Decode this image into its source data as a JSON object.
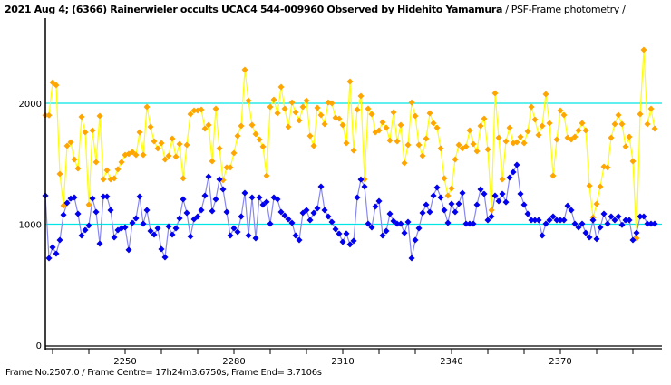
{
  "header": {
    "title_bold": "2021 Aug 4; (6366) Rainerwieler occults UCAC4 544-009960 Observed by Hidehito Yamamura",
    "title_suffix": " / PSF-Frame photometry /"
  },
  "footer": {
    "text": "Frame No.2507.0 / Frame Centre= 17h24m3.6750s,  Frame End= 3.7106s"
  },
  "colors": {
    "target_marker": "#0000ee",
    "target_line": "#8888ee",
    "comparison_marker": "#ffa500",
    "comparison_line": "#ffff00",
    "reference_line": "#00e5e5",
    "axis": "#000000"
  },
  "chart_data": {
    "type": "line",
    "title": "2021 Aug 4; (6366) Rainerwieler occults UCAC4 544-009960 Observed by Hidehito Yamamura / PSF-Frame photometry /",
    "xlabel": "",
    "ylabel": "",
    "xlim": [
      2225,
      2395
    ],
    "ylim": [
      0,
      2650
    ],
    "x_ticks": [
      2250,
      2280,
      2310,
      2340,
      2370
    ],
    "x_minor_step": 10,
    "y_ticks": [
      0,
      1000,
      2000
    ],
    "reference_lines": [
      1000,
      2000
    ],
    "grid": false,
    "legend": "none",
    "x_start": 2228,
    "series": [
      {
        "name": "comparison",
        "values": [
          1901,
          1901,
          2172,
          2150,
          1416,
          1154,
          1648,
          1678,
          1536,
          1461,
          1888,
          1760,
          1161,
          1775,
          1513,
          1895,
          1371,
          1446,
          1371,
          1379,
          1454,
          1513,
          1573,
          1581,
          1596,
          1573,
          1760,
          1573,
          1970,
          1805,
          1685,
          1626,
          1670,
          1536,
          1566,
          1708,
          1558,
          1663,
          1379,
          1655,
          1910,
          1940,
          1940,
          1948,
          1790,
          1820,
          1521,
          1955,
          1626,
          1364,
          1469,
          1469,
          1588,
          1730,
          1813,
          2277,
          2022,
          1820,
          1745,
          1700,
          1641,
          1401,
          1970,
          2030,
          1918,
          2135,
          1955,
          1805,
          2007,
          1925,
          1858,
          1970,
          2022,
          1730,
          1648,
          1963,
          1903,
          1828,
          2007,
          2000,
          1880,
          1873,
          1820,
          1670,
          2180,
          1610,
          1948,
          2060,
          1371,
          1955,
          1910,
          1760,
          1775,
          1843,
          1798,
          1693,
          1925,
          1685,
          1820,
          1506,
          1655,
          2007,
          1895,
          1655,
          1566,
          1708,
          1918,
          1835,
          1798,
          1626,
          1379,
          1236,
          1296,
          1536,
          1655,
          1626,
          1641,
          1775,
          1663,
          1603,
          1813,
          1873,
          1618,
          1116,
          2082,
          1715,
          1371,
          1685,
          1798,
          1670,
          1678,
          1723,
          1670,
          1768,
          1970,
          1865,
          1738,
          1813,
          2075,
          1835,
          1401,
          1700,
          1940,
          1903,
          1715,
          1700,
          1723,
          1775,
          1835,
          1775,
          1318,
          1056,
          1168,
          1311,
          1476,
          1469,
          1715,
          1828,
          1903,
          1828,
          1641,
          1723,
          1521,
          884,
          1910,
          2442,
          1828,
          1955,
          1790
        ]
      },
      {
        "name": "target",
        "values": [
          1236,
          719,
          809,
          757,
          869,
          1078,
          1176,
          1213,
          1221,
          1086,
          906,
          951,
          989,
          1213,
          1101,
          839,
          1228,
          1228,
          1116,
          891,
          951,
          966,
          974,
          787,
          1011,
          1049,
          1228,
          1004,
          1116,
          944,
          914,
          966,
          794,
          727,
          981,
          914,
          966,
          1049,
          1206,
          1094,
          899,
          1041,
          1064,
          1116,
          1236,
          1393,
          1109,
          1206,
          1371,
          1288,
          1101,
          906,
          966,
          936,
          1064,
          1258,
          906,
          1221,
          884,
          1221,
          1161,
          1184,
          1004,
          1221,
          1206,
          1101,
          1071,
          1041,
          1011,
          906,
          869,
          1094,
          1116,
          1034,
          1094,
          1131,
          1311,
          1116,
          1064,
          1019,
          959,
          921,
          854,
          922,
          832,
          862,
          1221,
          1370,
          1311,
          1004,
          974,
          1146,
          1191,
          906,
          944,
          1086,
          1026,
          1004,
          1004,
          928,
          1019,
          719,
          869,
          966,
          1094,
          1161,
          1101,
          1236,
          1303,
          1221,
          1116,
          1011,
          1169,
          1101,
          1169,
          1258,
          1004,
          1004,
          1004,
          1161,
          1288,
          1251,
          1034,
          1064,
          1236,
          1191,
          1251,
          1183,
          1386,
          1431,
          1491,
          1251,
          1161,
          1086,
          1034,
          1034,
          1034,
          906,
          1004,
          1034,
          1064,
          1034,
          1034,
          1034,
          1153,
          1116,
          1004,
          974,
          1004,
          929,
          891,
          1034,
          877,
          974,
          1086,
          1004,
          1064,
          1034,
          1064,
          994,
          1034,
          1034,
          869,
          929,
          1064,
          1064,
          1004,
          1004,
          1004
        ]
      }
    ]
  }
}
